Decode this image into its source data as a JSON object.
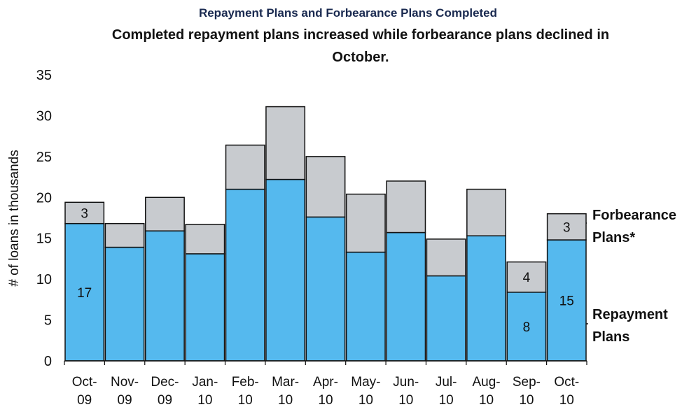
{
  "chart_data": {
    "type": "stacked_bar",
    "title": "Repayment Plans and Forbearance Plans Completed",
    "subtitle": "Completed repayment plans increased while forbearance plans declined in October.",
    "y_label": "# of loans in thousands",
    "categories": [
      "Oct-09",
      "Nov-09",
      "Dec-09",
      "Jan-10",
      "Feb-10",
      "Mar-10",
      "Apr-10",
      "May-10",
      "Jun-10",
      "Jul-10",
      "Aug-10",
      "Sep-10",
      "Oct-10"
    ],
    "series": [
      {
        "name": "Repayment Plans",
        "color": "#55b9ee",
        "values": [
          16.8,
          13.9,
          15.9,
          13.1,
          21.0,
          22.2,
          17.6,
          13.3,
          15.7,
          10.4,
          15.3,
          8.4,
          14.8
        ],
        "value_labels": [
          "17",
          null,
          null,
          null,
          null,
          null,
          null,
          null,
          null,
          null,
          null,
          "8",
          "15"
        ]
      },
      {
        "name": "Forbearance Plans*",
        "color": "#c8cbcf",
        "values": [
          2.6,
          2.9,
          4.1,
          3.6,
          5.4,
          8.9,
          7.4,
          7.1,
          6.3,
          4.5,
          5.7,
          3.7,
          3.2
        ],
        "value_labels": [
          "3",
          null,
          null,
          null,
          null,
          null,
          null,
          null,
          null,
          null,
          null,
          "4",
          "3"
        ]
      }
    ],
    "ylim": [
      0,
      35
    ],
    "yticks": [
      0,
      5,
      10,
      15,
      20,
      25,
      30,
      35
    ],
    "grid": false
  }
}
